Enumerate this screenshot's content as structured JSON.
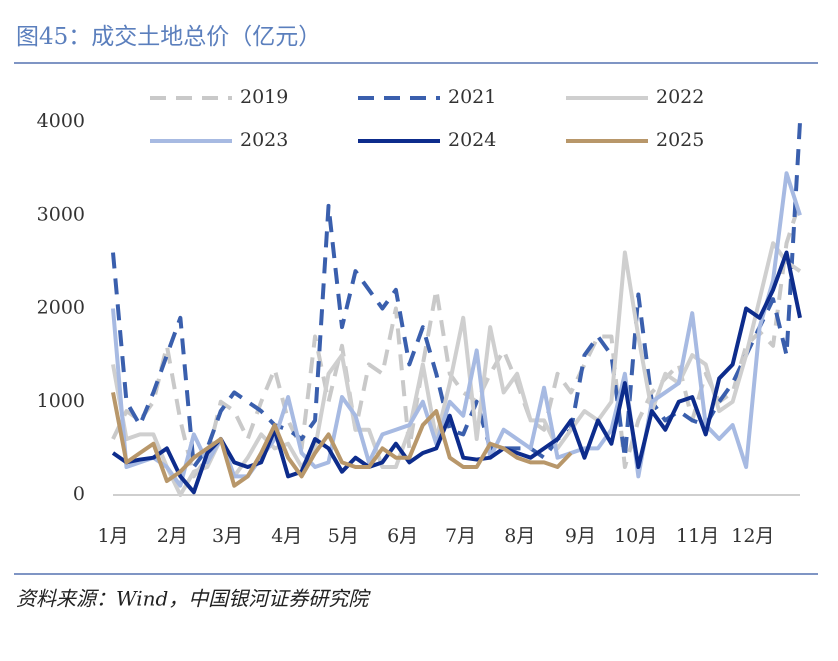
{
  "title": "图45：成交土地总价（亿元）",
  "source": "资料来源：Wind，中国银河证券研究院",
  "chart_data": {
    "type": "line",
    "x": [
      1,
      2,
      3,
      4,
      5,
      6,
      7,
      8,
      9,
      10,
      11,
      12,
      13,
      14,
      15,
      16,
      17,
      18,
      19,
      20,
      21,
      22,
      23,
      24,
      25,
      26,
      27,
      28,
      29,
      30,
      31,
      32,
      33,
      34,
      35,
      36,
      37,
      38,
      39,
      40,
      41,
      42,
      43,
      44,
      45,
      46,
      47,
      48,
      49,
      50,
      51,
      52
    ],
    "xlim": [
      1,
      52
    ],
    "xticks": [
      {
        "value": 1,
        "label": "1月"
      },
      {
        "value": 5.4,
        "label": "2月"
      },
      {
        "value": 9.5,
        "label": "3月"
      },
      {
        "value": 13.9,
        "label": "4月"
      },
      {
        "value": 18.1,
        "label": "5月"
      },
      {
        "value": 22.5,
        "label": "6月"
      },
      {
        "value": 26.8,
        "label": "7月"
      },
      {
        "value": 31.2,
        "label": "8月"
      },
      {
        "value": 35.7,
        "label": "9月"
      },
      {
        "value": 39.8,
        "label": "10月"
      },
      {
        "value": 44.4,
        "label": "11月"
      },
      {
        "value": 48.5,
        "label": "12月"
      }
    ],
    "ylim": [
      0,
      4000
    ],
    "yticks": [
      0,
      1000,
      2000,
      3000,
      4000
    ],
    "grid": false,
    "series": [
      {
        "name": "2019",
        "color": "#c9c9c9",
        "dashed": true,
        "values": [
          600,
          900,
          800,
          1000,
          1600,
          800,
          200,
          400,
          1000,
          900,
          600,
          1000,
          1350,
          800,
          500,
          1700,
          1000,
          1600,
          700,
          1400,
          1300,
          2000,
          500,
          1400,
          2200,
          1300,
          1100,
          1000,
          1300,
          1550,
          1200,
          800,
          700,
          1300,
          1100,
          1400,
          1700,
          1700,
          300,
          800,
          1100,
          1250,
          1400,
          800,
          1300,
          1000,
          1100,
          1600,
          1750,
          1600,
          2700,
          3150
        ]
      },
      {
        "name": "2021",
        "color": "#3a5fad",
        "dashed": true,
        "values": [
          2600,
          1000,
          750,
          1100,
          1500,
          1900,
          300,
          500,
          900,
          1100,
          1000,
          900,
          750,
          700,
          600,
          800,
          3100,
          1800,
          2400,
          2200,
          2000,
          2200,
          1400,
          1800,
          1300,
          700,
          650,
          1000,
          500,
          500,
          500,
          500,
          400,
          600,
          700,
          1500,
          1700,
          1500,
          400,
          2150,
          1000,
          800,
          900,
          800,
          750,
          1000,
          1200,
          1500,
          1800,
          2100,
          1500,
          4000
        ]
      },
      {
        "name": "2022",
        "color": "#cfcfcf",
        "dashed": false,
        "values": [
          1400,
          600,
          650,
          650,
          300,
          0,
          250,
          300,
          600,
          200,
          400,
          650,
          500,
          550,
          300,
          500,
          1300,
          1500,
          700,
          700,
          300,
          300,
          700,
          1400,
          600,
          1200,
          1900,
          600,
          1800,
          1100,
          1300,
          800,
          800,
          500,
          700,
          900,
          800,
          1000,
          2600,
          1700,
          900,
          1300,
          1200,
          1500,
          1400,
          900,
          1000,
          1500,
          2100,
          2700,
          2500,
          2400
        ]
      },
      {
        "name": "2023",
        "color": "#a7bae2",
        "dashed": false,
        "values": [
          2000,
          300,
          350,
          400,
          300,
          100,
          650,
          350,
          600,
          200,
          200,
          400,
          600,
          1050,
          450,
          300,
          350,
          1050,
          850,
          350,
          650,
          700,
          750,
          1000,
          550,
          1000,
          850,
          1550,
          400,
          700,
          600,
          500,
          1150,
          400,
          450,
          500,
          500,
          700,
          1300,
          200,
          1000,
          1100,
          1200,
          1950,
          750,
          600,
          750,
          300,
          1800,
          2300,
          3450,
          3000
        ]
      },
      {
        "name": "2024",
        "color": "#0d2c8c",
        "dashed": false,
        "values": [
          450,
          350,
          380,
          400,
          500,
          200,
          30,
          450,
          600,
          350,
          300,
          350,
          700,
          200,
          250,
          600,
          500,
          250,
          400,
          300,
          350,
          550,
          350,
          450,
          500,
          850,
          400,
          380,
          400,
          500,
          450,
          400,
          500,
          600,
          800,
          400,
          800,
          550,
          1200,
          300,
          900,
          700,
          1000,
          1050,
          650,
          1250,
          1400,
          2000,
          1900,
          2200,
          2600,
          1900
        ]
      },
      {
        "name": "2025",
        "color": "#b8976a",
        "dashed": false,
        "values": [
          1100,
          350,
          450,
          550,
          150,
          250,
          400,
          500,
          600,
          100,
          200,
          450,
          750,
          400,
          200,
          450,
          650,
          350,
          300,
          300,
          500,
          400,
          400,
          750,
          900,
          400,
          300,
          300,
          550,
          500,
          400,
          350,
          350,
          300,
          450,
          null,
          null,
          null,
          null,
          null,
          null,
          null,
          null,
          null,
          null,
          null,
          null,
          null,
          null,
          null,
          null,
          null
        ]
      }
    ]
  }
}
